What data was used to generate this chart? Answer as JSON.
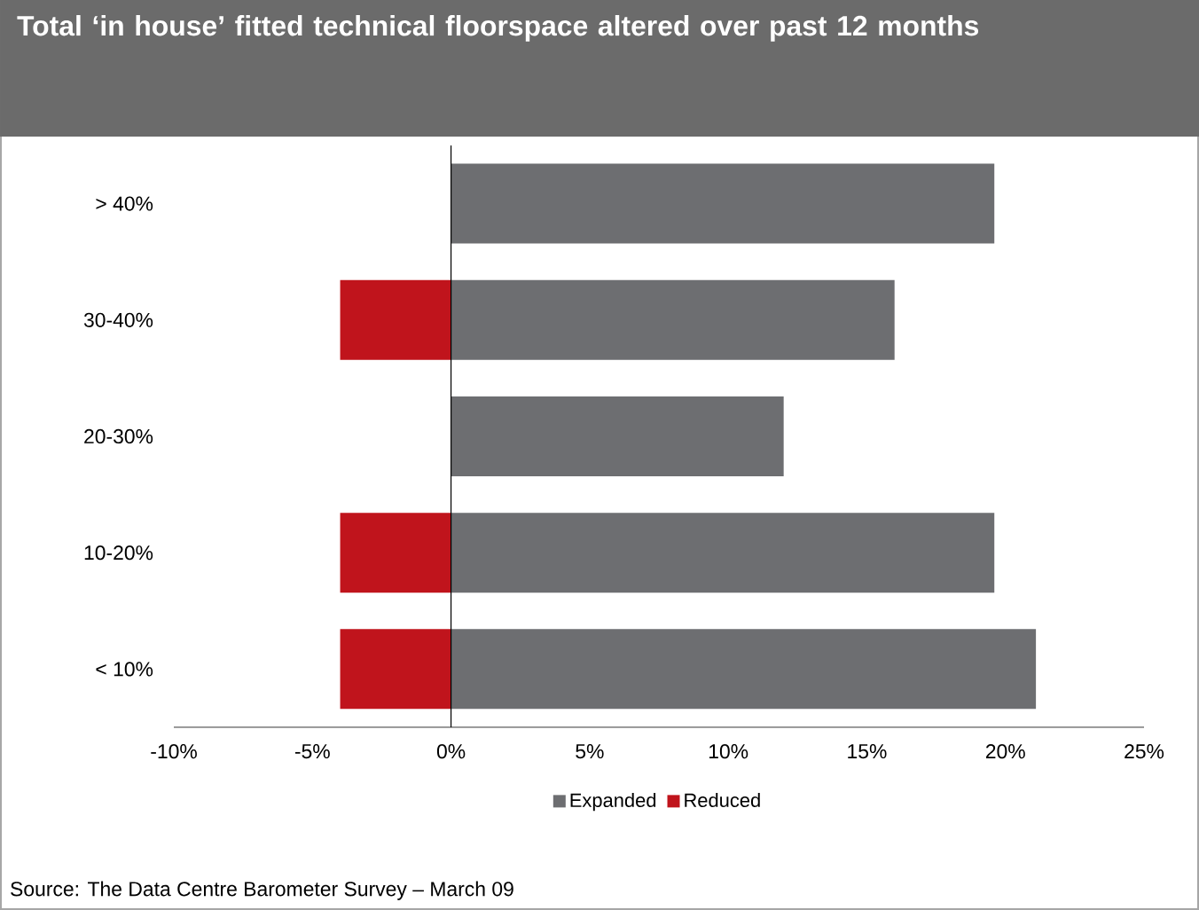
{
  "chart_data": {
    "type": "bar",
    "orientation": "horizontal",
    "title": "Total ‘in house’ fitted technical floorspace altered over past 12 months",
    "categories": [
      "> 40%",
      "30-40%",
      "20-30%",
      "10-20%",
      "< 10%"
    ],
    "series": [
      {
        "name": "Expanded",
        "color": "#6d6e71",
        "values": [
          19.6,
          16,
          12,
          19.6,
          21.1
        ]
      },
      {
        "name": "Reduced",
        "color": "#c0141c",
        "values": [
          null,
          -4,
          null,
          -4,
          -4
        ]
      }
    ],
    "xlim": [
      -10,
      25
    ],
    "xticks": [
      {
        "value": -10,
        "label": "-10%"
      },
      {
        "value": -5,
        "label": "-5%"
      },
      {
        "value": 0,
        "label": "0%"
      },
      {
        "value": 5,
        "label": "5%"
      },
      {
        "value": 10,
        "label": "10%"
      },
      {
        "value": 15,
        "label": "15%"
      },
      {
        "value": 20,
        "label": "20%"
      },
      {
        "value": 25,
        "label": "25%"
      }
    ],
    "legend": "bottom",
    "stacked": true,
    "annotations": [
      "Source: The Data Centre Barometer Survey – March 09"
    ]
  }
}
